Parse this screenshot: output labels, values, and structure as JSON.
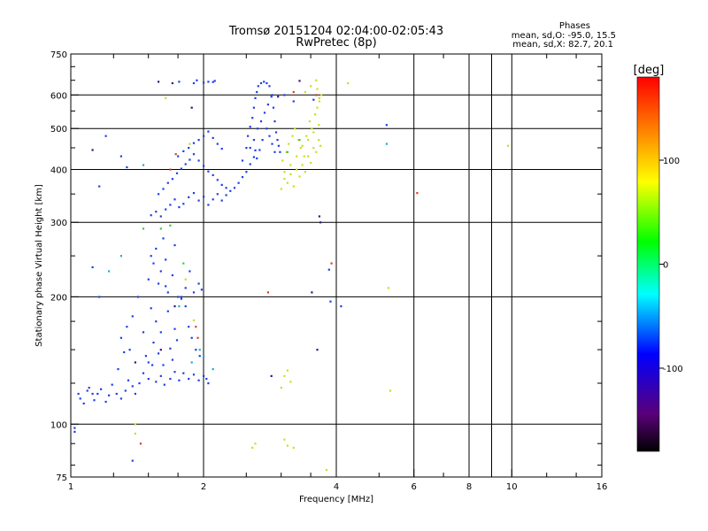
{
  "chart_data": {
    "type": "scatter",
    "title": "Tromsø 20151204 02:04:00-02:05:43",
    "subtitle": "RwPretec (8p)",
    "stats": {
      "heading": "Phases",
      "line1": "mean, sd,O: -95.0, 15.5",
      "line2": "mean, sd,X: 82.7, 20.1"
    },
    "xlabel": "Frequency [MHz]",
    "ylabel": "Stationary phase Virtual Height [km]",
    "x_scale": "log",
    "y_scale": "log",
    "xlim": [
      1,
      16
    ],
    "ylim": [
      75,
      750
    ],
    "x_ticks": [
      {
        "value": 1,
        "label": "1"
      },
      {
        "value": 2,
        "label": "2"
      },
      {
        "value": 4,
        "label": "4"
      },
      {
        "value": 6,
        "label": "6"
      },
      {
        "value": 8,
        "label": "8"
      },
      {
        "value": 10,
        "label": "10"
      },
      {
        "value": 16,
        "label": "16"
      }
    ],
    "x_gridlines": [
      2,
      4,
      6,
      8,
      9,
      10
    ],
    "y_ticks": [
      {
        "value": 75,
        "label": "75"
      },
      {
        "value": 100,
        "label": "100"
      },
      {
        "value": 200,
        "label": "200"
      },
      {
        "value": 300,
        "label": "300"
      },
      {
        "value": 400,
        "label": "400"
      },
      {
        "value": 500,
        "label": "500"
      },
      {
        "value": 600,
        "label": "600"
      },
      {
        "value": 750,
        "label": "750"
      }
    ],
    "y_gridlines": [
      100,
      200,
      300,
      400,
      500,
      600
    ],
    "colorbar": {
      "unit": "[deg]",
      "range": [
        -180,
        180
      ],
      "ticks": [
        {
          "value": 100,
          "label": "100"
        },
        {
          "value": 0,
          "label": "0"
        },
        {
          "value": -100,
          "label": "-100"
        }
      ],
      "colors": [
        "#000000",
        "#5a007a",
        "#0000ff",
        "#00ffff",
        "#00ff00",
        "#ffff00",
        "#ff8000",
        "#ff0000"
      ]
    },
    "grid": true,
    "series": [
      {
        "mode": "O",
        "color": "#1f3fe8",
        "points": [
          [
            1.02,
            98
          ],
          [
            1.02,
            96
          ],
          [
            1.04,
            118
          ],
          [
            1.05,
            115
          ],
          [
            1.07,
            112
          ],
          [
            1.09,
            120
          ],
          [
            1.1,
            122
          ],
          [
            1.12,
            118
          ],
          [
            1.13,
            114
          ],
          [
            1.15,
            118
          ],
          [
            1.17,
            121
          ],
          [
            1.2,
            113
          ],
          [
            1.22,
            117
          ],
          [
            1.24,
            124
          ],
          [
            1.27,
            118
          ],
          [
            1.3,
            115
          ],
          [
            1.33,
            120
          ],
          [
            1.35,
            127
          ],
          [
            1.38,
            123
          ],
          [
            1.4,
            118
          ],
          [
            1.43,
            125
          ],
          [
            1.46,
            132
          ],
          [
            1.5,
            128
          ],
          [
            1.53,
            138
          ],
          [
            1.56,
            126
          ],
          [
            1.6,
            130
          ],
          [
            1.63,
            124
          ],
          [
            1.68,
            128
          ],
          [
            1.72,
            133
          ],
          [
            1.76,
            127
          ],
          [
            1.8,
            132
          ],
          [
            1.85,
            128
          ],
          [
            1.9,
            131
          ],
          [
            1.95,
            127
          ],
          [
            2.0,
            130
          ],
          [
            2.03,
            128
          ],
          [
            2.05,
            125
          ],
          [
            1.28,
            135
          ],
          [
            1.3,
            160
          ],
          [
            1.32,
            148
          ],
          [
            1.34,
            170
          ],
          [
            1.36,
            150
          ],
          [
            1.38,
            180
          ],
          [
            1.42,
            200
          ],
          [
            1.46,
            165
          ],
          [
            1.48,
            145
          ],
          [
            1.5,
            140
          ],
          [
            1.52,
            188
          ],
          [
            1.54,
            156
          ],
          [
            1.56,
            175
          ],
          [
            1.58,
            147
          ],
          [
            1.6,
            165
          ],
          [
            1.62,
            138
          ],
          [
            1.64,
            212
          ],
          [
            1.66,
            185
          ],
          [
            1.68,
            151
          ],
          [
            1.7,
            142
          ],
          [
            1.72,
            168
          ],
          [
            1.74,
            158
          ],
          [
            1.78,
            200
          ],
          [
            1.82,
            190
          ],
          [
            1.85,
            170
          ],
          [
            1.88,
            160
          ],
          [
            1.92,
            150
          ],
          [
            1.96,
            145
          ],
          [
            1.5,
            220
          ],
          [
            1.52,
            250
          ],
          [
            1.54,
            240
          ],
          [
            1.56,
            260
          ],
          [
            1.58,
            215
          ],
          [
            1.6,
            230
          ],
          [
            1.62,
            275
          ],
          [
            1.64,
            245
          ],
          [
            1.66,
            205
          ],
          [
            1.7,
            225
          ],
          [
            1.72,
            265
          ],
          [
            1.75,
            200
          ],
          [
            1.78,
            198
          ],
          [
            1.82,
            210
          ],
          [
            1.86,
            230
          ],
          [
            1.9,
            205
          ],
          [
            1.95,
            215
          ],
          [
            1.98,
            208
          ],
          [
            1.52,
            312
          ],
          [
            1.56,
            318
          ],
          [
            1.6,
            310
          ],
          [
            1.64,
            322
          ],
          [
            1.68,
            330
          ],
          [
            1.72,
            340
          ],
          [
            1.76,
            326
          ],
          [
            1.8,
            332
          ],
          [
            1.85,
            344
          ],
          [
            1.9,
            352
          ],
          [
            1.95,
            338
          ],
          [
            2.0,
            345
          ],
          [
            2.05,
            330
          ],
          [
            2.1,
            340
          ],
          [
            2.15,
            350
          ],
          [
            2.2,
            338
          ],
          [
            2.25,
            348
          ],
          [
            2.3,
            356
          ],
          [
            2.35,
            362
          ],
          [
            2.4,
            372
          ],
          [
            2.45,
            384
          ],
          [
            2.5,
            395
          ],
          [
            2.55,
            412
          ],
          [
            2.6,
            428
          ],
          [
            2.62,
            444
          ],
          [
            1.58,
            350
          ],
          [
            1.62,
            360
          ],
          [
            1.66,
            372
          ],
          [
            1.7,
            380
          ],
          [
            1.74,
            392
          ],
          [
            1.78,
            402
          ],
          [
            1.82,
            412
          ],
          [
            1.86,
            422
          ],
          [
            1.9,
            435
          ],
          [
            1.95,
            420
          ],
          [
            2.0,
            408
          ],
          [
            2.05,
            396
          ],
          [
            2.1,
            388
          ],
          [
            2.15,
            378
          ],
          [
            2.2,
            368
          ],
          [
            2.25,
            362
          ],
          [
            1.75,
            430
          ],
          [
            1.8,
            442
          ],
          [
            1.85,
            450
          ],
          [
            1.9,
            462
          ],
          [
            1.95,
            470
          ],
          [
            2.0,
            480
          ],
          [
            2.05,
            492
          ],
          [
            2.1,
            475
          ],
          [
            2.15,
            460
          ],
          [
            2.2,
            448
          ],
          [
            2.45,
            420
          ],
          [
            2.5,
            450
          ],
          [
            2.52,
            480
          ],
          [
            2.55,
            505
          ],
          [
            2.58,
            530
          ],
          [
            2.6,
            560
          ],
          [
            2.62,
            590
          ],
          [
            2.64,
            610
          ],
          [
            2.66,
            630
          ],
          [
            2.7,
            640
          ],
          [
            2.74,
            645
          ],
          [
            2.78,
            640
          ],
          [
            2.82,
            630
          ],
          [
            2.86,
            600
          ],
          [
            2.88,
            560
          ],
          [
            2.9,
            520
          ],
          [
            2.92,
            490
          ],
          [
            2.94,
            470
          ],
          [
            2.96,
            455
          ],
          [
            2.98,
            440
          ],
          [
            2.55,
            450
          ],
          [
            2.6,
            470
          ],
          [
            2.65,
            500
          ],
          [
            2.7,
            520
          ],
          [
            2.75,
            545
          ],
          [
            2.8,
            570
          ],
          [
            2.85,
            595
          ],
          [
            2.78,
            500
          ],
          [
            2.82,
            480
          ],
          [
            2.86,
            460
          ],
          [
            2.9,
            440
          ],
          [
            2.72,
            470
          ],
          [
            2.68,
            445
          ],
          [
            2.64,
            425
          ],
          [
            1.76,
            645
          ],
          [
            1.9,
            640
          ],
          [
            1.93,
            650
          ],
          [
            2.0,
            642
          ],
          [
            2.05,
            645
          ],
          [
            2.1,
            644
          ],
          [
            2.12,
            648
          ],
          [
            1.2,
            480
          ],
          [
            1.3,
            430
          ],
          [
            1.34,
            405
          ],
          [
            1.16,
            365
          ],
          [
            1.12,
            235
          ],
          [
            1.16,
            200
          ],
          [
            1.38,
            82
          ],
          [
            3.05,
            600
          ],
          [
            3.2,
            580
          ],
          [
            3.55,
            585
          ],
          [
            3.85,
            232
          ],
          [
            3.88,
            195
          ],
          [
            4.1,
            190
          ],
          [
            5.2,
            510
          ]
        ]
      },
      {
        "mode": "X",
        "color": "#c8e020",
        "points": [
          [
            3.0,
            360
          ],
          [
            3.05,
            380
          ],
          [
            3.1,
            372
          ],
          [
            3.15,
            390
          ],
          [
            3.2,
            365
          ],
          [
            3.25,
            400
          ],
          [
            3.3,
            385
          ],
          [
            3.35,
            410
          ],
          [
            3.4,
            395
          ],
          [
            3.45,
            430
          ],
          [
            3.5,
            415
          ],
          [
            3.55,
            450
          ],
          [
            3.6,
            440
          ],
          [
            3.65,
            470
          ],
          [
            3.68,
            455
          ],
          [
            3.02,
            420
          ],
          [
            3.08,
            440
          ],
          [
            3.12,
            460
          ],
          [
            3.18,
            480
          ],
          [
            3.22,
            500
          ],
          [
            3.28,
            470
          ],
          [
            3.32,
            450
          ],
          [
            3.38,
            430
          ],
          [
            3.42,
            480
          ],
          [
            3.48,
            520
          ],
          [
            3.52,
            500
          ],
          [
            3.58,
            540
          ],
          [
            3.62,
            560
          ],
          [
            3.66,
            580
          ],
          [
            3.7,
            600
          ],
          [
            3.05,
            395
          ],
          [
            3.15,
            410
          ],
          [
            3.25,
            430
          ],
          [
            3.35,
            455
          ],
          [
            3.45,
            470
          ],
          [
            3.55,
            490
          ],
          [
            3.65,
            510
          ],
          [
            3.4,
            610
          ],
          [
            3.5,
            630
          ],
          [
            3.6,
            650
          ],
          [
            3.62,
            620
          ],
          [
            3.66,
            590
          ],
          [
            3.0,
            122
          ],
          [
            3.05,
            130
          ],
          [
            3.1,
            134
          ],
          [
            3.15,
            126
          ],
          [
            2.62,
            90
          ],
          [
            2.58,
            88
          ],
          [
            3.05,
            92
          ],
          [
            3.1,
            89
          ],
          [
            3.2,
            88
          ],
          [
            3.8,
            78
          ],
          [
            4.25,
            640
          ],
          [
            5.25,
            210
          ],
          [
            5.3,
            120
          ],
          [
            9.8,
            455
          ],
          [
            1.4,
            100
          ],
          [
            1.4,
            95
          ],
          [
            1.64,
            590
          ],
          [
            1.82,
            220
          ],
          [
            1.9,
            176
          ],
          [
            1.86,
            460
          ]
        ]
      },
      {
        "mode": "other",
        "color": "#d84020",
        "points": [
          [
            1.44,
            90
          ],
          [
            1.92,
            170
          ],
          [
            1.94,
            160
          ],
          [
            2.8,
            205
          ],
          [
            3.2,
            610
          ],
          [
            3.6,
            600
          ],
          [
            3.9,
            240
          ],
          [
            6.1,
            352
          ],
          [
            1.68,
            400
          ],
          [
            1.73,
            435
          ]
        ]
      },
      {
        "mode": "other",
        "color": "#3a1080",
        "points": [
          [
            1.12,
            445
          ],
          [
            1.58,
            645
          ],
          [
            1.7,
            640
          ],
          [
            1.88,
            560
          ],
          [
            2.95,
            595
          ],
          [
            3.3,
            648
          ],
          [
            3.62,
            150
          ],
          [
            3.68,
            300
          ],
          [
            3.66,
            310
          ],
          [
            3.52,
            205
          ],
          [
            2.85,
            130
          ],
          [
            1.4,
            140
          ],
          [
            1.6,
            150
          ],
          [
            1.72,
            190
          ]
        ]
      },
      {
        "mode": "other",
        "color": "#20b0c0",
        "points": [
          [
            1.22,
            230
          ],
          [
            1.3,
            250
          ],
          [
            1.46,
            410
          ],
          [
            1.76,
            190
          ],
          [
            1.88,
            140
          ],
          [
            1.96,
            150
          ],
          [
            2.0,
            145
          ],
          [
            2.1,
            135
          ],
          [
            5.2,
            460
          ]
        ]
      },
      {
        "mode": "other",
        "color": "#3cc83c",
        "points": [
          [
            1.46,
            290
          ],
          [
            1.6,
            290
          ],
          [
            1.68,
            295
          ],
          [
            1.8,
            240
          ],
          [
            3.1,
            440
          ],
          [
            3.3,
            470
          ]
        ]
      }
    ]
  }
}
